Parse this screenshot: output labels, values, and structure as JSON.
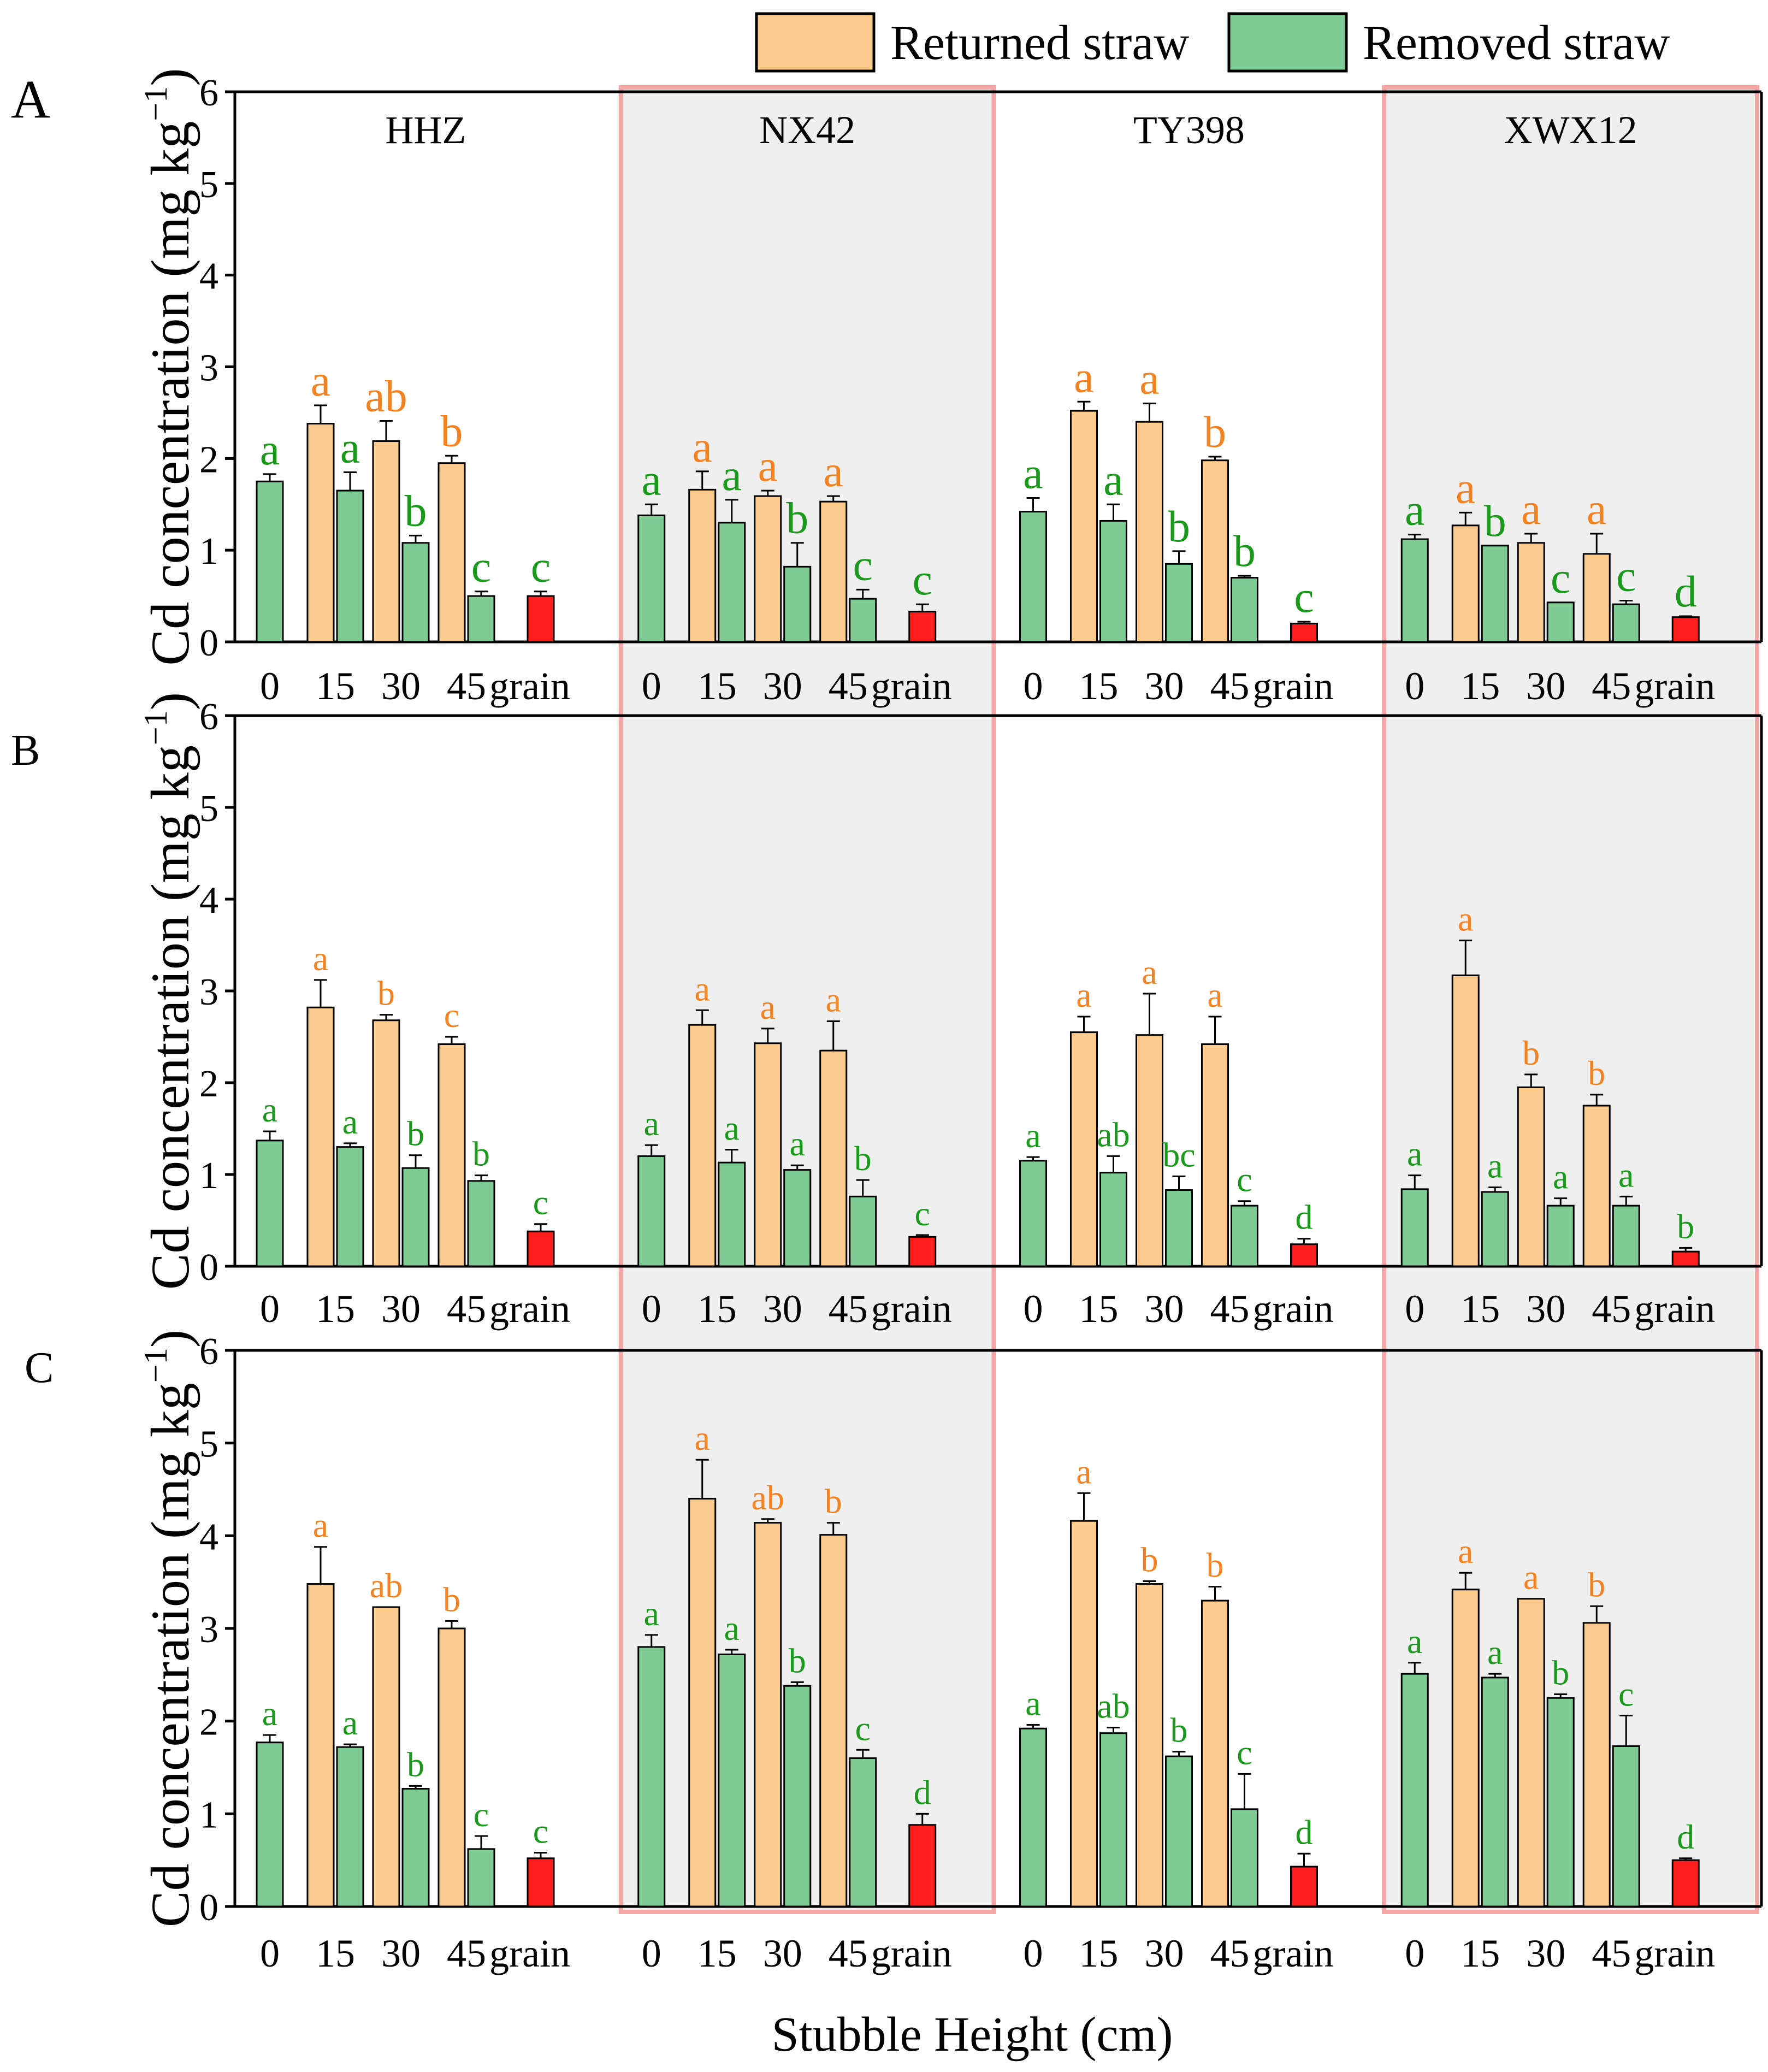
{
  "chart_data": {
    "type": "bar",
    "xlabel": "Stubble Height (cm)",
    "ylabel": "Cd concentration (mg kg",
    "ylabel_sup": "−1",
    "ylabel_close": ")",
    "ylim": [
      0,
      6
    ],
    "yticks": [
      "0",
      "1",
      "2",
      "3",
      "4",
      "5",
      "6"
    ],
    "categories": [
      "0",
      "15",
      "30",
      "45",
      "grain"
    ],
    "cultivars": [
      "HHZ",
      "NX42",
      "TY398",
      "XWX12"
    ],
    "legend": [
      {
        "name": "Returned straw",
        "color": "#FDCB8E"
      },
      {
        "name": "Removed straw",
        "color": "#7FCB94"
      }
    ],
    "colors": {
      "returned": "#FDCB8E",
      "removed": "#7FCB94",
      "grain": "#FF1E1E",
      "returned_label": "#F58220",
      "removed_label": "#1A9A1A",
      "highlight_fill": "#EFEFEF",
      "highlight_border": "#F4A6A6"
    },
    "panels": [
      {
        "label": "A",
        "groups": [
          {
            "cultivar": "HHZ",
            "removed": [
              1.75,
              1.65,
              1.08,
              0.5
            ],
            "removed_err": [
              0.08,
              0.2,
              0.08,
              0.05
            ],
            "removed_labels": [
              "a",
              "a",
              "b",
              "c"
            ],
            "returned": [
              2.38,
              2.19,
              1.95
            ],
            "returned_err": [
              0.2,
              0.22,
              0.08
            ],
            "returned_labels": [
              "a",
              "ab",
              "b"
            ],
            "grain": 0.5,
            "grain_err": 0.05,
            "grain_label": "c"
          },
          {
            "cultivar": "NX42",
            "removed": [
              1.38,
              1.3,
              0.82,
              0.47
            ],
            "removed_err": [
              0.12,
              0.25,
              0.26,
              0.1
            ],
            "removed_labels": [
              "a",
              "a",
              "b",
              "c"
            ],
            "returned": [
              1.66,
              1.59,
              1.53
            ],
            "returned_err": [
              0.2,
              0.06,
              0.06
            ],
            "returned_labels": [
              "a",
              "a",
              "a"
            ],
            "grain": 0.33,
            "grain_err": 0.08,
            "grain_label": "c"
          },
          {
            "cultivar": "TY398",
            "removed": [
              1.42,
              1.32,
              0.85,
              0.7
            ],
            "removed_err": [
              0.15,
              0.18,
              0.14,
              0.02
            ],
            "removed_labels": [
              "a",
              "a",
              "b",
              "b"
            ],
            "returned": [
              2.52,
              2.4,
              1.98
            ],
            "returned_err": [
              0.1,
              0.2,
              0.04
            ],
            "returned_labels": [
              "a",
              "a",
              "b"
            ],
            "grain": 0.2,
            "grain_err": 0.02,
            "grain_label": "c"
          },
          {
            "cultivar": "XWX12",
            "removed": [
              1.12,
              1.05,
              0.43,
              0.41
            ],
            "removed_err": [
              0.05,
              0.0,
              0.0,
              0.04
            ],
            "removed_labels": [
              "a",
              "b",
              "c",
              "c"
            ],
            "returned": [
              1.27,
              1.08,
              0.96
            ],
            "returned_err": [
              0.14,
              0.1,
              0.22
            ],
            "returned_labels": [
              "a",
              "a",
              "a"
            ],
            "grain": 0.27,
            "grain_err": 0.01,
            "grain_label": "d"
          }
        ]
      },
      {
        "label": "B",
        "groups": [
          {
            "cultivar": "HHZ",
            "removed": [
              1.37,
              1.3,
              1.07,
              0.93
            ],
            "removed_err": [
              0.1,
              0.04,
              0.14,
              0.06
            ],
            "removed_labels": [
              "a",
              "a",
              "b",
              "b"
            ],
            "returned": [
              2.82,
              2.68,
              2.42
            ],
            "returned_err": [
              0.3,
              0.06,
              0.08
            ],
            "returned_labels": [
              "a",
              "b",
              "c"
            ],
            "grain": 0.38,
            "grain_err": 0.08,
            "grain_label": "c"
          },
          {
            "cultivar": "NX42",
            "removed": [
              1.2,
              1.13,
              1.05,
              0.76
            ],
            "removed_err": [
              0.12,
              0.14,
              0.05,
              0.18
            ],
            "removed_labels": [
              "a",
              "a",
              "a",
              "b"
            ],
            "returned": [
              2.63,
              2.43,
              2.35
            ],
            "returned_err": [
              0.16,
              0.16,
              0.32
            ],
            "returned_labels": [
              "a",
              "a",
              "a"
            ],
            "grain": 0.32,
            "grain_err": 0.02,
            "grain_label": "c"
          },
          {
            "cultivar": "TY398",
            "removed": [
              1.15,
              1.02,
              0.83,
              0.66
            ],
            "removed_err": [
              0.04,
              0.18,
              0.15,
              0.05
            ],
            "removed_labels": [
              "a",
              "ab",
              "bc",
              "c"
            ],
            "returned": [
              2.55,
              2.52,
              2.42
            ],
            "returned_err": [
              0.17,
              0.45,
              0.3
            ],
            "returned_labels": [
              "a",
              "a",
              "a"
            ],
            "grain": 0.24,
            "grain_err": 0.06,
            "grain_label": "d"
          },
          {
            "cultivar": "XWX12",
            "removed": [
              0.84,
              0.81,
              0.66,
              0.66
            ],
            "removed_err": [
              0.15,
              0.05,
              0.08,
              0.1
            ],
            "removed_labels": [
              "a",
              "a",
              "a",
              "a"
            ],
            "returned": [
              3.17,
              1.95,
              1.75
            ],
            "returned_err": [
              0.38,
              0.14,
              0.12
            ],
            "returned_labels": [
              "a",
              "b",
              "b"
            ],
            "grain": 0.16,
            "grain_err": 0.04,
            "grain_label": "b"
          }
        ]
      },
      {
        "label": "C",
        "groups": [
          {
            "cultivar": "HHZ",
            "removed": [
              1.77,
              1.72,
              1.27,
              0.62
            ],
            "removed_err": [
              0.08,
              0.03,
              0.03,
              0.14
            ],
            "removed_labels": [
              "a",
              "a",
              "b",
              "c"
            ],
            "returned": [
              3.48,
              3.23,
              3.0
            ],
            "returned_err": [
              0.4,
              0.0,
              0.08
            ],
            "returned_labels": [
              "a",
              "ab",
              "b"
            ],
            "grain": 0.52,
            "grain_err": 0.06,
            "grain_label": "c"
          },
          {
            "cultivar": "NX42",
            "removed": [
              2.8,
              2.72,
              2.38,
              1.6
            ],
            "removed_err": [
              0.13,
              0.05,
              0.04,
              0.09
            ],
            "removed_labels": [
              "a",
              "a",
              "b",
              "c"
            ],
            "returned": [
              4.4,
              4.14,
              4.01
            ],
            "returned_err": [
              0.42,
              0.04,
              0.13
            ],
            "returned_labels": [
              "a",
              "ab",
              "b"
            ],
            "grain": 0.88,
            "grain_err": 0.12,
            "grain_label": "d"
          },
          {
            "cultivar": "TY398",
            "removed": [
              1.92,
              1.87,
              1.62,
              1.05
            ],
            "removed_err": [
              0.04,
              0.06,
              0.05,
              0.38
            ],
            "removed_labels": [
              "a",
              "ab",
              "b",
              "c"
            ],
            "returned": [
              4.16,
              3.48,
              3.3
            ],
            "returned_err": [
              0.3,
              0.03,
              0.15
            ],
            "returned_labels": [
              "a",
              "b",
              "b"
            ],
            "grain": 0.43,
            "grain_err": 0.14,
            "grain_label": "d"
          },
          {
            "cultivar": "XWX12",
            "removed": [
              2.51,
              2.47,
              2.25,
              1.73
            ],
            "removed_err": [
              0.12,
              0.04,
              0.04,
              0.33
            ],
            "removed_labels": [
              "a",
              "a",
              "b",
              "c"
            ],
            "returned": [
              3.42,
              3.32,
              3.06
            ],
            "returned_err": [
              0.18,
              0.0,
              0.18
            ],
            "returned_labels": [
              "a",
              "a",
              "b"
            ],
            "grain": 0.5,
            "grain_err": 0.02,
            "grain_label": "d"
          }
        ]
      }
    ]
  }
}
